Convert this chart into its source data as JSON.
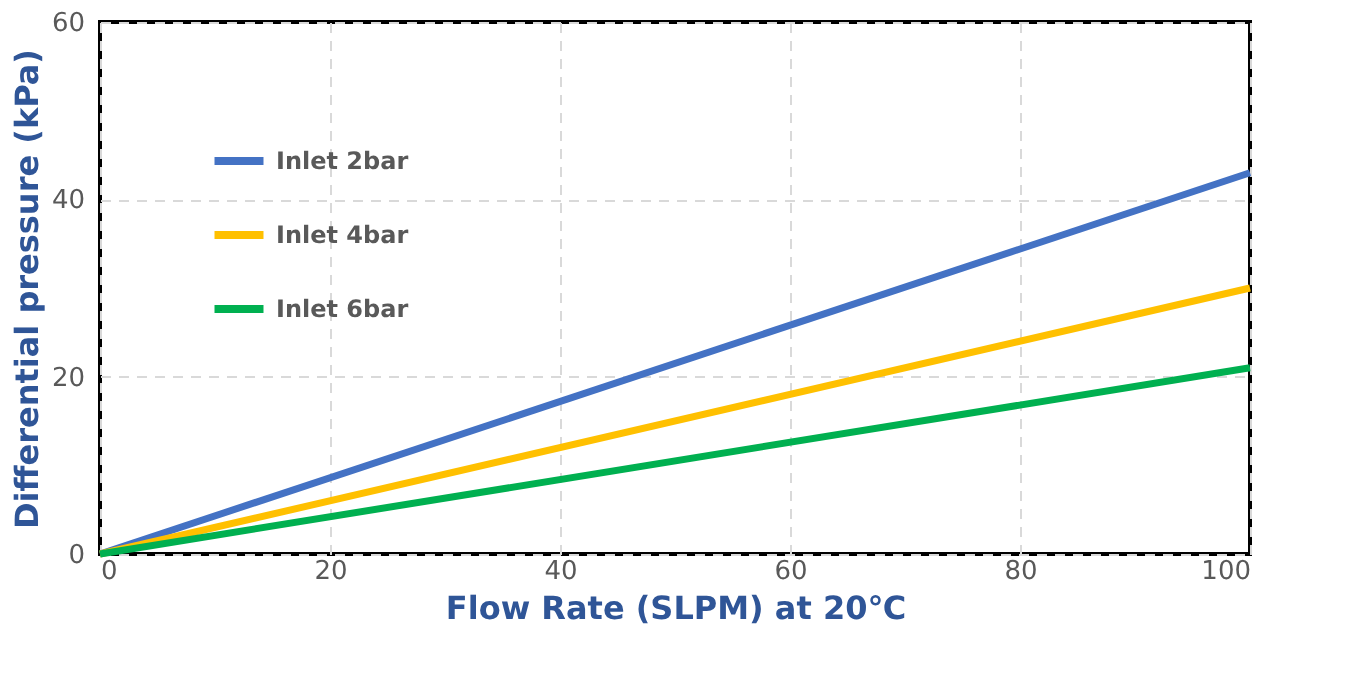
{
  "chart_data": {
    "type": "line",
    "xlabel": "Flow Rate (SLPM) at 20℃",
    "ylabel": "Differential pressure  (kPa)",
    "x": [
      0,
      100
    ],
    "series": [
      {
        "name": "Inlet 2bar",
        "color": "#4472c4",
        "values": [
          0,
          43
        ]
      },
      {
        "name": "Inlet 4bar",
        "color": "#ffc000",
        "values": [
          0,
          30
        ]
      },
      {
        "name": "Inlet 6bar",
        "color": "#00b050",
        "values": [
          0,
          21
        ]
      }
    ],
    "xlim": [
      0,
      100
    ],
    "ylim": [
      0,
      60
    ],
    "xticks": [
      0,
      20,
      40,
      60,
      80,
      100
    ],
    "yticks": [
      0,
      20,
      40,
      60
    ],
    "grid": true,
    "legend": "top left",
    "marker": "none",
    "line_style": "solid"
  }
}
